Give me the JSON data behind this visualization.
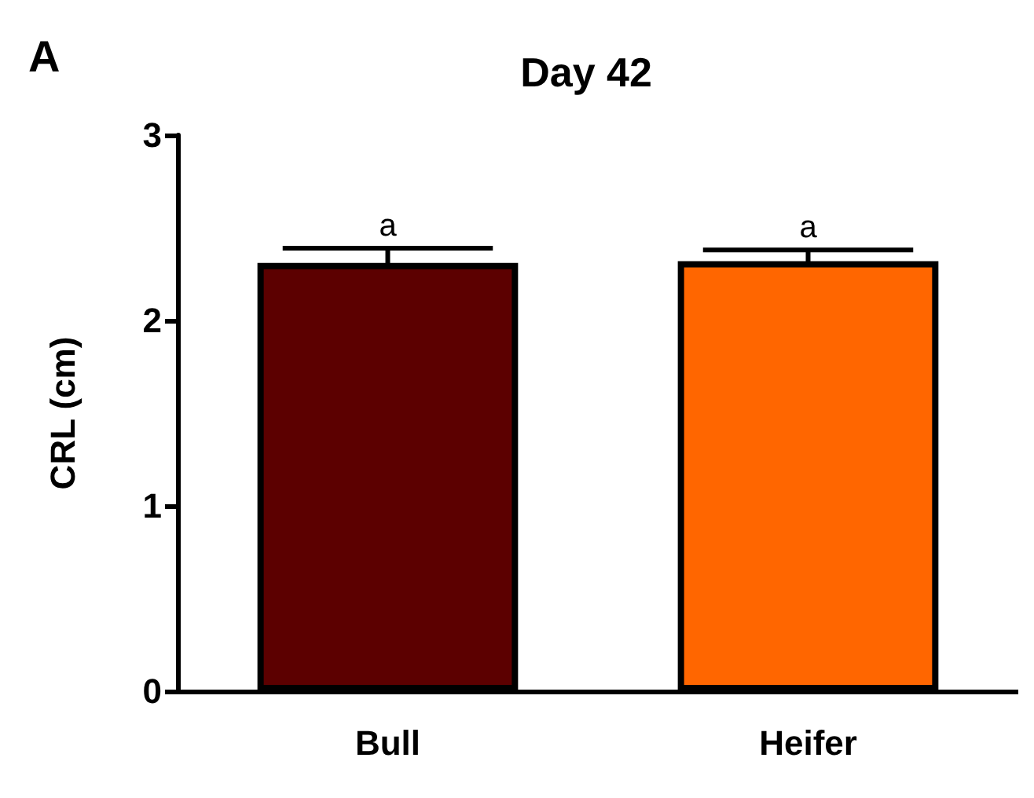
{
  "chart_data": {
    "type": "bar",
    "title": "Day 42",
    "ylabel": "CRL (cm)",
    "categories": [
      "Bull",
      "Heifer"
    ],
    "values": [
      2.31,
      2.32
    ],
    "colors": [
      "#5c0000",
      "#ff6600"
    ],
    "errors": [
      0.08,
      0.06
    ],
    "ylim": [
      0,
      3
    ],
    "yticks": [
      0,
      1,
      2,
      3
    ],
    "grid": false,
    "annotations": [
      "A",
      {
        "text": "a",
        "x": "Bull",
        "y": 2.39
      },
      {
        "text": "a",
        "x": "Heifer",
        "y": 2.38
      }
    ]
  }
}
